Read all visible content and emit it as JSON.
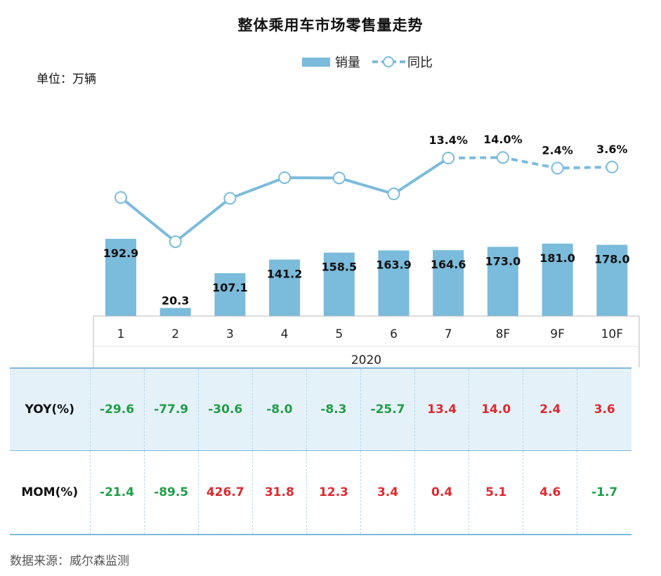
{
  "title": "整体乘用车市场零售量走势",
  "unit_label": "单位：万辆",
  "source_label": "数据来源：威尔森监测",
  "colors": {
    "bar": "#7bbbdb",
    "line": "#7bbbdb",
    "positive": "#e0282e",
    "negative": "#1f9e47",
    "table_header_bg": "#e5f1f9"
  },
  "chart_data": {
    "type": "bar+line",
    "title": "整体乘用车市场零售量走势",
    "categories": [
      "1",
      "2",
      "3",
      "4",
      "5",
      "6",
      "7",
      "8F",
      "9F",
      "10F"
    ],
    "x_group_label": "2020",
    "legend": [
      "销量",
      "同比"
    ],
    "legend_position": "top-center",
    "series": [
      {
        "name": "销量",
        "type": "bar",
        "values": [
          192.9,
          20.3,
          107.1,
          141.2,
          158.5,
          163.9,
          164.6,
          173.0,
          181.0,
          178.0
        ],
        "labels": [
          "192.9",
          "20.3",
          "107.1",
          "141.2",
          "158.5",
          "163.9",
          "164.6",
          "173.0",
          "181.0",
          "178.0"
        ]
      },
      {
        "name": "同比",
        "type": "line",
        "values": [
          -29.6,
          -77.9,
          -30.6,
          -8.0,
          -8.3,
          -25.7,
          13.4,
          14.0,
          2.4,
          3.6
        ],
        "labels": [
          "",
          "",
          "",
          "",
          "",
          "",
          "13.4%",
          "14.0%",
          "2.4%",
          "3.6%"
        ],
        "dashed_from_index": 6
      }
    ]
  },
  "table": {
    "rows": [
      {
        "label": "YOY(%)",
        "values": [
          "-29.6",
          "-77.9",
          "-30.6",
          "-8.0",
          "-8.3",
          "-25.7",
          "13.4",
          "14.0",
          "2.4",
          "3.6"
        ]
      },
      {
        "label": "MOM(%)",
        "values": [
          "-21.4",
          "-89.5",
          "426.7",
          "31.8",
          "12.3",
          "3.4",
          "0.4",
          "5.1",
          "4.6",
          "-1.7"
        ]
      }
    ]
  }
}
